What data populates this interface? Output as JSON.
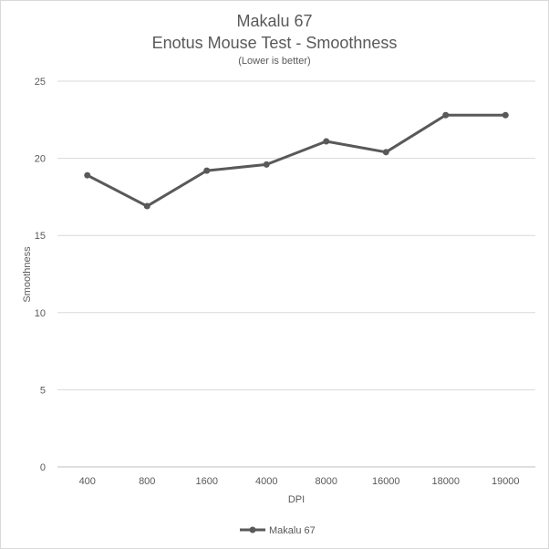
{
  "chart_data": {
    "type": "line",
    "title": "Makalu 67",
    "subtitle": "Enotus Mouse Test - Smoothness",
    "note": "(Lower  is better)",
    "xlabel": "DPI",
    "ylabel": "Smoothness",
    "categories": [
      "400",
      "800",
      "1600",
      "4000",
      "8000",
      "16000",
      "18000",
      "19000"
    ],
    "series": [
      {
        "name": "Makalu 67",
        "values": [
          18.9,
          16.9,
          19.2,
          19.6,
          21.1,
          20.4,
          22.8,
          22.8
        ],
        "color": "#595959"
      }
    ],
    "ylim": [
      0,
      25
    ],
    "yticks": [
      0,
      5,
      10,
      15,
      20,
      25
    ],
    "grid": true,
    "legend_position": "bottom"
  }
}
